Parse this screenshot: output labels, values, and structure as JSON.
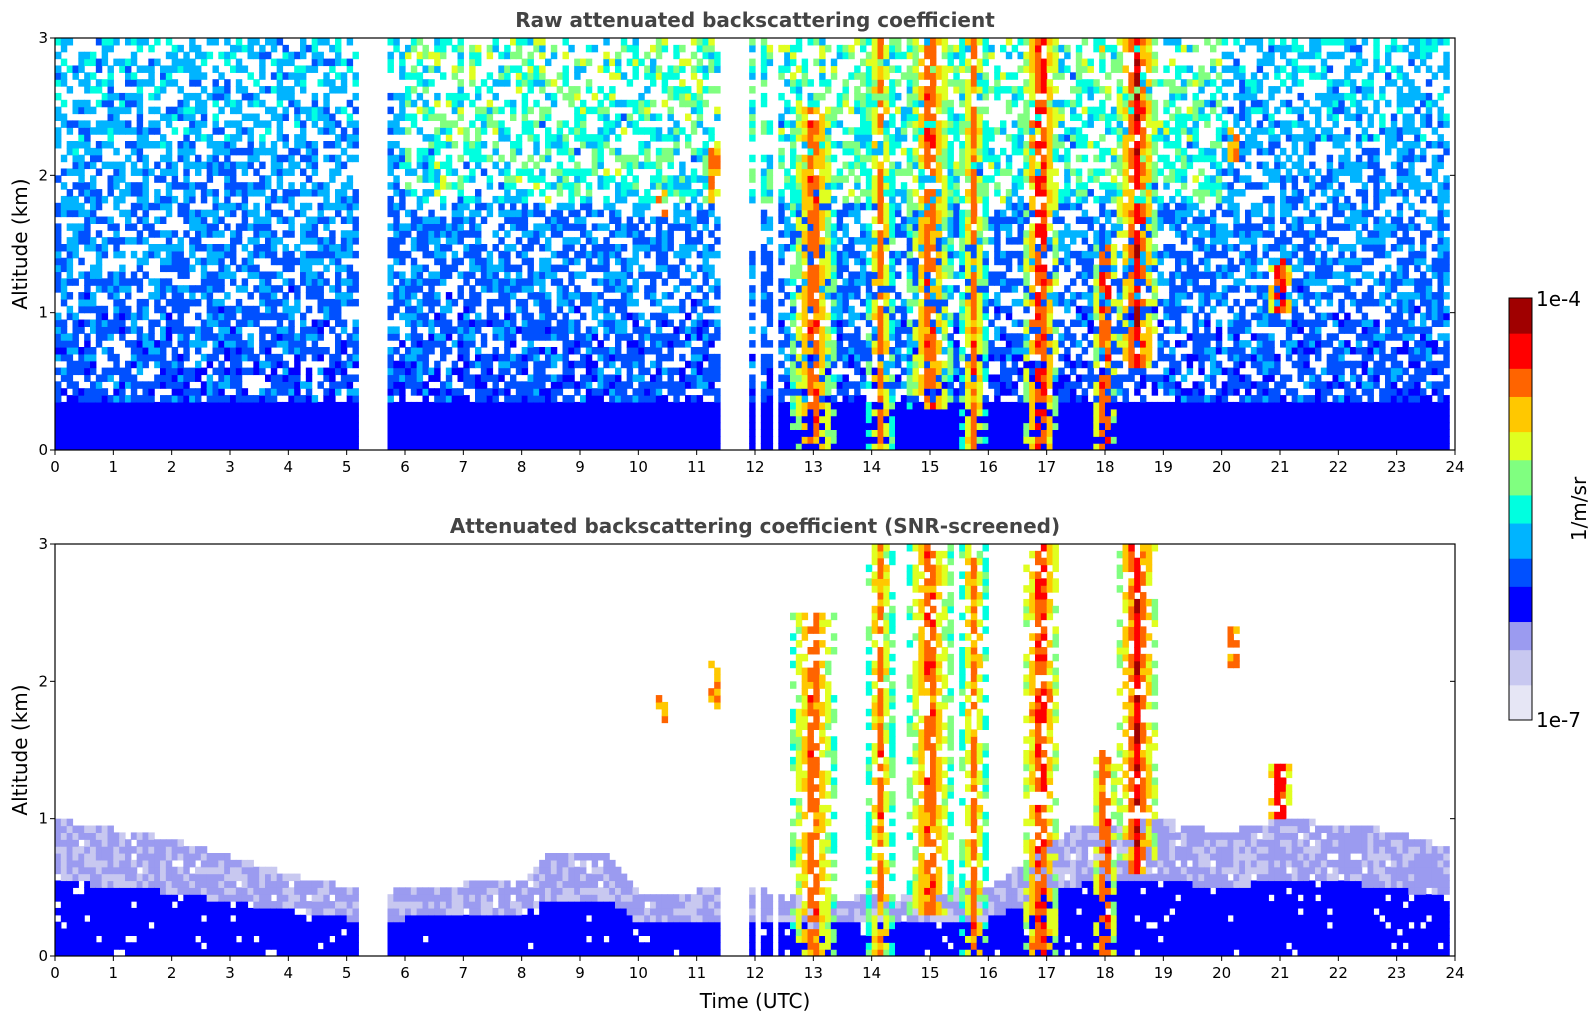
{
  "chart_data": [
    {
      "type": "heatmap",
      "title": "Raw attenuated backscattering coefficient",
      "xlabel": "",
      "ylabel": "Altitude (km)",
      "xlim": [
        0,
        24
      ],
      "ylim": [
        0,
        3
      ],
      "x_ticks": [
        "0",
        "1",
        "2",
        "3",
        "4",
        "5",
        "6",
        "7",
        "8",
        "9",
        "10",
        "11",
        "12",
        "13",
        "14",
        "15",
        "16",
        "17",
        "18",
        "19",
        "20",
        "21",
        "22",
        "23",
        "24"
      ],
      "y_ticks": [
        "0",
        "1",
        "2",
        "3"
      ],
      "variant": "raw",
      "cloud_features": [
        {
          "t0": 12.6,
          "t1": 13.4,
          "z0": 0.0,
          "z1": 2.5,
          "level": 0.9
        },
        {
          "t0": 13.9,
          "t1": 14.4,
          "z0": 0.0,
          "z1": 3.0,
          "level": 0.85
        },
        {
          "t0": 14.6,
          "t1": 15.4,
          "z0": 0.3,
          "z1": 3.0,
          "level": 0.9
        },
        {
          "t0": 15.5,
          "t1": 16.0,
          "z0": 0.0,
          "z1": 3.0,
          "level": 0.85
        },
        {
          "t0": 16.6,
          "t1": 17.2,
          "z0": 0.0,
          "z1": 3.0,
          "level": 0.95
        },
        {
          "t0": 17.8,
          "t1": 18.2,
          "z0": 0.0,
          "z1": 1.5,
          "level": 0.95
        },
        {
          "t0": 18.2,
          "t1": 18.9,
          "z0": 0.6,
          "z1": 3.0,
          "level": 0.95
        },
        {
          "t0": 20.1,
          "t1": 20.3,
          "z0": 2.1,
          "z1": 2.4,
          "level": 1.0
        },
        {
          "t0": 20.8,
          "t1": 21.2,
          "z0": 1.0,
          "z1": 1.4,
          "level": 1.0
        },
        {
          "t0": 11.2,
          "t1": 11.4,
          "z0": 1.8,
          "z1": 2.2,
          "level": 1.0
        },
        {
          "t0": 10.3,
          "t1": 10.5,
          "z0": 1.7,
          "z1": 1.9,
          "level": 1.0
        }
      ],
      "data_gaps_utc": [
        [
          5.15,
          5.45
        ],
        [
          5.55,
          5.7
        ],
        [
          11.4,
          11.55
        ],
        [
          11.65,
          11.8
        ],
        [
          11.85,
          11.9
        ],
        [
          12.0,
          12.1
        ],
        [
          12.15,
          12.2
        ],
        [
          12.3,
          12.35
        ]
      ]
    },
    {
      "type": "heatmap",
      "title": "Attenuated backscattering coefficient (SNR-screened)",
      "xlabel": "Time (UTC)",
      "ylabel": "Altitude (km)",
      "xlim": [
        0,
        24
      ],
      "ylim": [
        0,
        3
      ],
      "x_ticks": [
        "0",
        "1",
        "2",
        "3",
        "4",
        "5",
        "6",
        "7",
        "8",
        "9",
        "10",
        "11",
        "12",
        "13",
        "14",
        "15",
        "16",
        "17",
        "18",
        "19",
        "20",
        "21",
        "22",
        "23",
        "24"
      ],
      "y_ticks": [
        "0",
        "1",
        "2",
        "3"
      ],
      "variant": "screened",
      "boundary_layer_top_km": [
        [
          0,
          1.0
        ],
        [
          2,
          0.85
        ],
        [
          4,
          0.6
        ],
        [
          5.5,
          0.45
        ],
        [
          6,
          0.5
        ],
        [
          8,
          0.55
        ],
        [
          8.5,
          0.75
        ],
        [
          9.5,
          0.75
        ],
        [
          10,
          0.45
        ],
        [
          12,
          0.5
        ],
        [
          13,
          0.4
        ],
        [
          16,
          0.5
        ],
        [
          17.5,
          0.95
        ],
        [
          19,
          1.0
        ],
        [
          20,
          0.9
        ],
        [
          21,
          1.0
        ],
        [
          22.5,
          0.95
        ],
        [
          23.8,
          0.8
        ]
      ]
    }
  ],
  "colorbar": {
    "label": "1/m/sr",
    "max_label": "1e-4",
    "min_label": "1e-7",
    "colors": [
      "#e6e6f5",
      "#c8c8f0",
      "#9b9bf0",
      "#0000ff",
      "#0050ff",
      "#00b4ff",
      "#00ffe0",
      "#80ff80",
      "#e0ff20",
      "#ffc800",
      "#ff6400",
      "#ff0000",
      "#a00000"
    ]
  }
}
